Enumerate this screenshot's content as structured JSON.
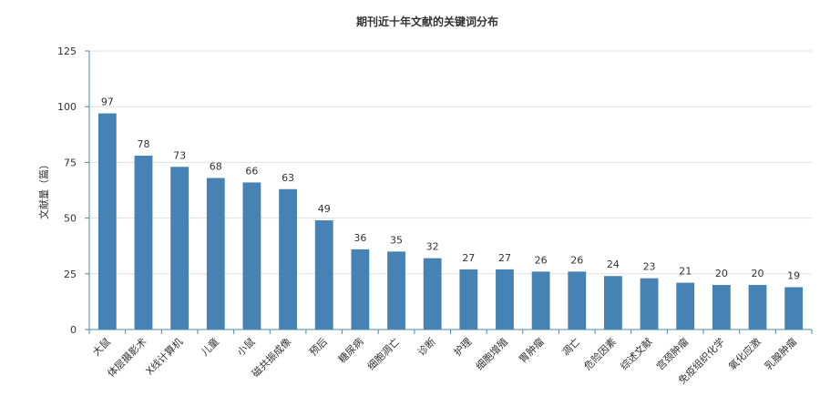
{
  "chart_data": {
    "type": "bar",
    "title": "期刊近十年文献的关键词分布",
    "ylabel": "文献量（篇）",
    "xlabel": "",
    "ylim": [
      0,
      125
    ],
    "yticks": [
      0,
      25,
      50,
      75,
      100,
      125
    ],
    "grid": true,
    "bar_color": "#4682b4",
    "categories": [
      "大鼠",
      "体层摄影术",
      "X线计算机",
      "儿童",
      "小鼠",
      "磁共振成像",
      "预后",
      "糖尿病",
      "细胞凋亡",
      "诊断",
      "护理",
      "细胞增殖",
      "胃肿瘤",
      "凋亡",
      "危险因素",
      "综述文献",
      "宫颈肿瘤",
      "免疫组织化学",
      "氧化应激",
      "乳腺肿瘤"
    ],
    "values": [
      97,
      78,
      73,
      68,
      66,
      63,
      49,
      36,
      35,
      32,
      27,
      27,
      26,
      26,
      24,
      23,
      21,
      20,
      20,
      19
    ]
  }
}
